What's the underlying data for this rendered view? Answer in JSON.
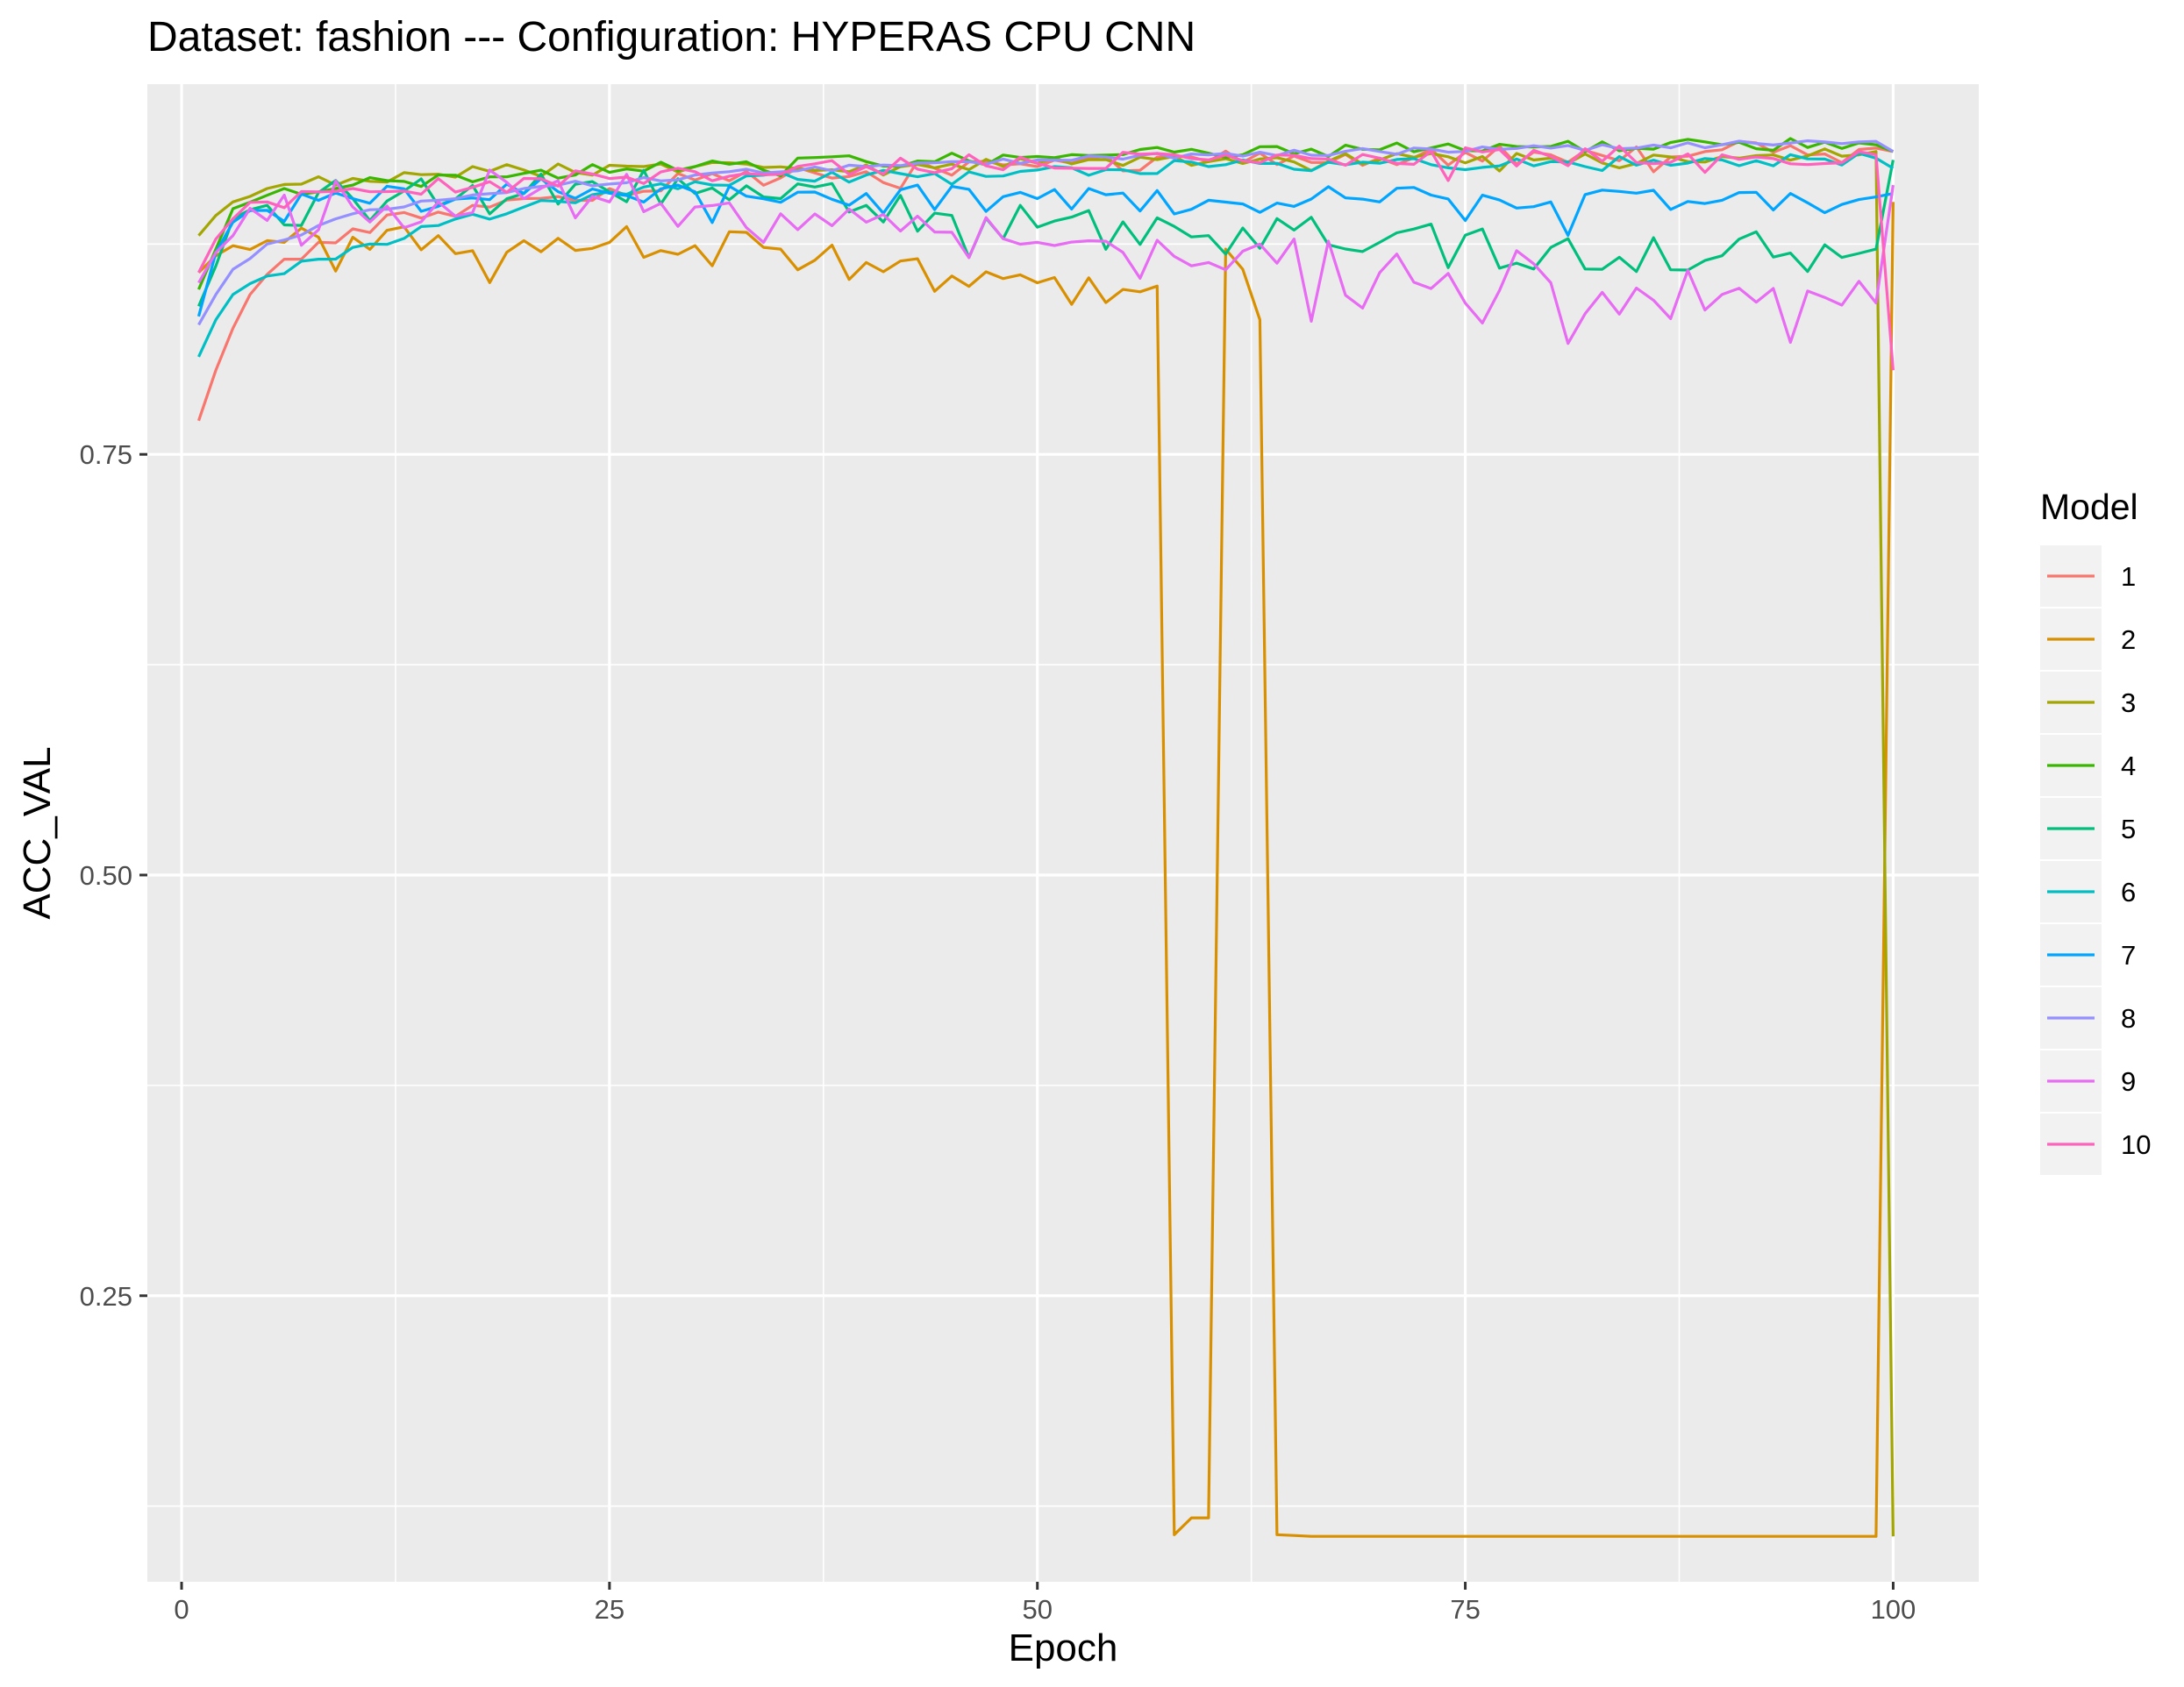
{
  "chart_data": {
    "type": "line",
    "title": "Dataset:  fashion  --- Configuration:  HYPERAS CPU CNN",
    "xlabel": "Epoch",
    "ylabel": "ACC_VAL",
    "xlim": [
      -2,
      105
    ],
    "ylim": [
      0.08,
      0.97
    ],
    "x_ticks": [
      0,
      25,
      50,
      75,
      100
    ],
    "x_tick_labels": [
      "0",
      "25",
      "50",
      "75",
      "100"
    ],
    "y_ticks": [
      0.25,
      0.5,
      0.75
    ],
    "y_tick_labels": [
      "0.25",
      "0.50",
      "0.75"
    ],
    "grid": true,
    "panel_background": "#ebebeb",
    "legend": {
      "title": "Model",
      "position": "right"
    },
    "x_range": [
      1,
      100
    ],
    "series": [
      {
        "name": "1",
        "color": "#F8766D",
        "keypoints": [
          [
            1,
            0.77
          ],
          [
            2,
            0.8
          ],
          [
            3,
            0.825
          ],
          [
            4,
            0.845
          ],
          [
            5,
            0.857
          ],
          [
            6,
            0.866
          ],
          [
            8,
            0.876
          ],
          [
            10,
            0.884
          ],
          [
            15,
            0.894
          ],
          [
            20,
            0.902
          ],
          [
            25,
            0.908
          ],
          [
            30,
            0.913
          ],
          [
            40,
            0.918
          ],
          [
            50,
            0.921
          ],
          [
            60,
            0.924
          ],
          [
            70,
            0.926
          ],
          [
            80,
            0.928
          ],
          [
            90,
            0.931
          ],
          [
            99,
            0.932
          ],
          [
            100,
            0.93
          ]
        ],
        "noise": 0.006
      },
      {
        "name": "2",
        "color": "#D89000",
        "keypoints": [
          [
            1,
            0.858
          ],
          [
            2,
            0.868
          ],
          [
            3,
            0.874
          ],
          [
            5,
            0.877
          ],
          [
            10,
            0.879
          ],
          [
            15,
            0.88
          ],
          [
            20,
            0.877
          ],
          [
            25,
            0.876
          ],
          [
            30,
            0.874
          ],
          [
            35,
            0.872
          ],
          [
            40,
            0.864
          ],
          [
            45,
            0.856
          ],
          [
            50,
            0.852
          ],
          [
            55,
            0.848
          ],
          [
            57,
            0.85
          ],
          [
            58,
            0.108
          ],
          [
            59,
            0.118
          ],
          [
            60,
            0.118
          ],
          [
            61,
            0.872
          ],
          [
            62,
            0.86
          ],
          [
            63,
            0.83
          ],
          [
            64,
            0.108
          ],
          [
            66,
            0.107
          ],
          [
            75,
            0.107
          ],
          [
            90,
            0.107
          ],
          [
            99,
            0.107
          ],
          [
            100,
            0.9
          ]
        ],
        "noise": 0.012
      },
      {
        "name": "3",
        "color": "#A3A500",
        "keypoints": [
          [
            1,
            0.88
          ],
          [
            2,
            0.892
          ],
          [
            3,
            0.9
          ],
          [
            5,
            0.908
          ],
          [
            10,
            0.914
          ],
          [
            20,
            0.919
          ],
          [
            30,
            0.921
          ],
          [
            40,
            0.922
          ],
          [
            50,
            0.923
          ],
          [
            60,
            0.924
          ],
          [
            70,
            0.925
          ],
          [
            80,
            0.926
          ],
          [
            90,
            0.927
          ],
          [
            98,
            0.928
          ],
          [
            99,
            0.93
          ],
          [
            100,
            0.107
          ]
        ],
        "noise": 0.004
      },
      {
        "name": "4",
        "color": "#39B600",
        "keypoints": [
          [
            1,
            0.848
          ],
          [
            2,
            0.872
          ],
          [
            3,
            0.896
          ],
          [
            5,
            0.904
          ],
          [
            10,
            0.91
          ],
          [
            20,
            0.917
          ],
          [
            30,
            0.921
          ],
          [
            40,
            0.924
          ],
          [
            50,
            0.927
          ],
          [
            60,
            0.929
          ],
          [
            70,
            0.931
          ],
          [
            80,
            0.933
          ],
          [
            90,
            0.934
          ],
          [
            99,
            0.934
          ],
          [
            100,
            0.93
          ]
        ],
        "noise": 0.004
      },
      {
        "name": "5",
        "color": "#00BF7D",
        "keypoints": [
          [
            1,
            0.838
          ],
          [
            2,
            0.862
          ],
          [
            3,
            0.89
          ],
          [
            5,
            0.898
          ],
          [
            10,
            0.902
          ],
          [
            20,
            0.905
          ],
          [
            30,
            0.905
          ],
          [
            35,
            0.902
          ],
          [
            40,
            0.898
          ],
          [
            45,
            0.892
          ],
          [
            50,
            0.885
          ],
          [
            60,
            0.88
          ],
          [
            70,
            0.876
          ],
          [
            80,
            0.873
          ],
          [
            90,
            0.868
          ],
          [
            99,
            0.872
          ],
          [
            100,
            0.925
          ]
        ],
        "noise": 0.014
      },
      {
        "name": "6",
        "color": "#00BFC4",
        "keypoints": [
          [
            1,
            0.808
          ],
          [
            2,
            0.83
          ],
          [
            3,
            0.845
          ],
          [
            5,
            0.856
          ],
          [
            8,
            0.866
          ],
          [
            10,
            0.873
          ],
          [
            15,
            0.886
          ],
          [
            20,
            0.897
          ],
          [
            25,
            0.906
          ],
          [
            30,
            0.912
          ],
          [
            40,
            0.916
          ],
          [
            50,
            0.919
          ],
          [
            60,
            0.921
          ],
          [
            70,
            0.923
          ],
          [
            80,
            0.924
          ],
          [
            90,
            0.925
          ],
          [
            99,
            0.926
          ],
          [
            100,
            0.92
          ]
        ],
        "noise": 0.004
      },
      {
        "name": "7",
        "color": "#00A5FF",
        "keypoints": [
          [
            1,
            0.832
          ],
          [
            2,
            0.87
          ],
          [
            3,
            0.888
          ],
          [
            5,
            0.895
          ],
          [
            10,
            0.902
          ],
          [
            20,
            0.905
          ],
          [
            30,
            0.906
          ],
          [
            40,
            0.905
          ],
          [
            50,
            0.902
          ],
          [
            60,
            0.901
          ],
          [
            70,
            0.9
          ],
          [
            80,
            0.9
          ],
          [
            90,
            0.901
          ],
          [
            99,
            0.903
          ],
          [
            100,
            0.905
          ]
        ],
        "noise": 0.009
      },
      {
        "name": "8",
        "color": "#9590FF",
        "keypoints": [
          [
            1,
            0.827
          ],
          [
            2,
            0.845
          ],
          [
            3,
            0.86
          ],
          [
            5,
            0.875
          ],
          [
            8,
            0.886
          ],
          [
            10,
            0.893
          ],
          [
            15,
            0.901
          ],
          [
            20,
            0.908
          ],
          [
            30,
            0.916
          ],
          [
            40,
            0.921
          ],
          [
            50,
            0.925
          ],
          [
            60,
            0.928
          ],
          [
            70,
            0.93
          ],
          [
            80,
            0.932
          ],
          [
            90,
            0.934
          ],
          [
            99,
            0.936
          ],
          [
            100,
            0.93
          ]
        ],
        "noise": 0.002
      },
      {
        "name": "9",
        "color": "#E76BF3",
        "keypoints": [
          [
            1,
            0.852
          ],
          [
            2,
            0.87
          ],
          [
            3,
            0.88
          ],
          [
            5,
            0.889
          ],
          [
            10,
            0.897
          ],
          [
            15,
            0.9
          ],
          [
            20,
            0.902
          ],
          [
            25,
            0.9
          ],
          [
            30,
            0.897
          ],
          [
            35,
            0.893
          ],
          [
            40,
            0.888
          ],
          [
            45,
            0.882
          ],
          [
            50,
            0.876
          ],
          [
            55,
            0.87
          ],
          [
            60,
            0.864
          ],
          [
            70,
            0.858
          ],
          [
            80,
            0.852
          ],
          [
            90,
            0.845
          ],
          [
            99,
            0.84
          ],
          [
            100,
            0.91
          ]
        ],
        "noise": 0.018
      },
      {
        "name": "10",
        "color": "#FF62BC",
        "keypoints": [
          [
            1,
            0.858
          ],
          [
            2,
            0.878
          ],
          [
            3,
            0.89
          ],
          [
            5,
            0.9
          ],
          [
            10,
            0.908
          ],
          [
            20,
            0.914
          ],
          [
            30,
            0.918
          ],
          [
            40,
            0.921
          ],
          [
            50,
            0.923
          ],
          [
            60,
            0.925
          ],
          [
            70,
            0.926
          ],
          [
            80,
            0.927
          ],
          [
            90,
            0.928
          ],
          [
            99,
            0.928
          ],
          [
            100,
            0.8
          ]
        ],
        "noise": 0.006
      }
    ]
  }
}
